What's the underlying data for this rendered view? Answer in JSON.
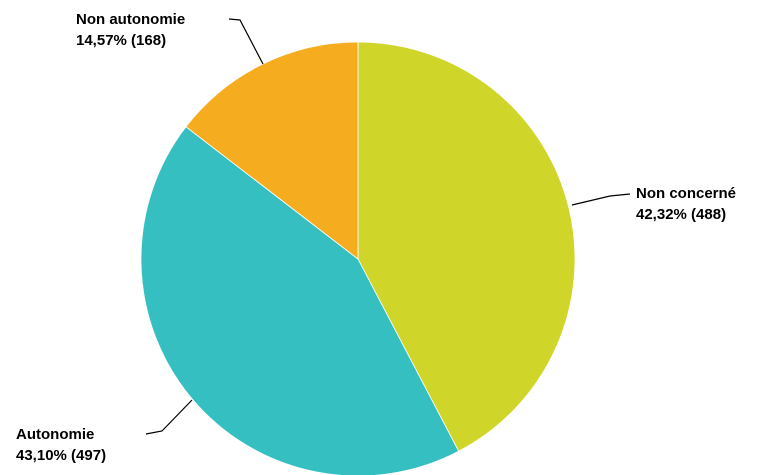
{
  "chart_data": {
    "type": "pie",
    "start_angle_deg": 0,
    "direction": "clockwise",
    "slices": [
      {
        "label": "Non concerné",
        "percent_text": "42,32%",
        "count_text": "(488)",
        "value": 488,
        "color": "#d0d52a"
      },
      {
        "label": "Autonomie",
        "percent_text": "43,10%",
        "count_text": "(497)",
        "value": 497,
        "color": "#35bfc0"
      },
      {
        "label": "Non autonomie",
        "percent_text": "14,57%",
        "count_text": "(168)",
        "value": 168,
        "color": "#f5ad1f"
      }
    ]
  }
}
